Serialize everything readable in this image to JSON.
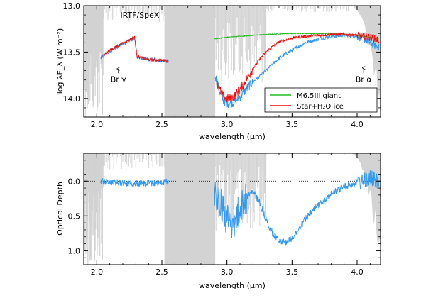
{
  "chart_data": [
    {
      "type": "line",
      "panel": "top",
      "xlabel": "wavelength (μm)",
      "ylabel": "log λF_λ (W m⁻²)",
      "xlim": [
        1.9,
        4.18
      ],
      "ylim": [
        -14.2,
        -13.0
      ],
      "x_ticks": [
        2.0,
        2.5,
        3.0,
        3.5,
        4.0
      ],
      "x_tick_labels": [
        "2.0",
        "2.5",
        "3.0",
        "3.5",
        "4.0"
      ],
      "y_ticks": [
        -14.0,
        -13.5,
        -13.0
      ],
      "y_tick_labels": [
        "−14.0",
        "−13.5",
        "−13.0"
      ],
      "annotations": [
        {
          "text": "IRTF/SpeX",
          "x": 2.18,
          "y": -13.13
        },
        {
          "text": "Br γ",
          "x": 2.166,
          "y": -13.82,
          "arrow_to_y": -13.68
        },
        {
          "text": "Br α",
          "x": 4.05,
          "y": -13.82,
          "arrow_to_y": -13.67
        }
      ],
      "legend": {
        "placement": "bottom-right",
        "entries": [
          {
            "label": "M6.5III giant",
            "color": "#22bb22"
          },
          {
            "label": "Star+H₂O ice",
            "color": "#ee1111"
          }
        ]
      },
      "series": [
        {
          "name": "observed",
          "color": "#3399ee",
          "x": [
            2.03,
            2.06,
            2.1,
            2.14,
            2.18,
            2.22,
            2.26,
            2.29,
            2.31,
            2.34,
            2.37,
            2.4,
            2.44,
            2.48,
            2.52,
            2.55,
            2.91,
            2.93,
            2.95,
            2.97,
            3.0,
            3.03,
            3.06,
            3.09,
            3.12,
            3.16,
            3.2,
            3.25,
            3.3,
            3.35,
            3.4,
            3.45,
            3.5,
            3.55,
            3.6,
            3.7,
            3.8,
            3.9,
            4.0,
            4.05,
            4.1,
            4.15,
            4.17
          ],
          "y": [
            -13.57,
            -13.53,
            -13.49,
            -13.46,
            -13.43,
            -13.4,
            -13.37,
            -13.35,
            -13.55,
            -13.56,
            -13.57,
            -13.58,
            -13.58,
            -13.59,
            -13.6,
            -13.6,
            -13.75,
            -13.85,
            -13.95,
            -14.02,
            -14.05,
            -14.05,
            -14.04,
            -14.0,
            -13.95,
            -13.88,
            -13.82,
            -13.76,
            -13.7,
            -13.63,
            -13.57,
            -13.52,
            -13.48,
            -13.44,
            -13.4,
            -13.36,
            -13.33,
            -13.32,
            -13.33,
            -13.36,
            -13.4,
            -13.44,
            -13.45
          ]
        },
        {
          "name": "M6.5III giant",
          "color": "#22bb22",
          "x": [
            2.9,
            3.0,
            3.1,
            3.2,
            3.3,
            3.4,
            3.5,
            3.6,
            3.7,
            3.8,
            3.9,
            4.0,
            4.1,
            4.17
          ],
          "y": [
            -13.36,
            -13.34,
            -13.33,
            -13.32,
            -13.31,
            -13.305,
            -13.3,
            -13.3,
            -13.3,
            -13.3,
            -13.31,
            -13.32,
            -13.34,
            -13.36
          ]
        },
        {
          "name": "Star+H₂O ice",
          "color": "#ee1111",
          "x": [
            2.03,
            2.06,
            2.1,
            2.14,
            2.18,
            2.22,
            2.26,
            2.29,
            2.31,
            2.34,
            2.37,
            2.4,
            2.44,
            2.48,
            2.52,
            2.55,
            2.92,
            2.95,
            2.97,
            3.0,
            3.03,
            3.06,
            3.09,
            3.12,
            3.15,
            3.2,
            3.25,
            3.3,
            3.35,
            3.4,
            3.5,
            3.6,
            3.7,
            3.8,
            3.9,
            4.0,
            4.1,
            4.17
          ],
          "y": [
            -13.56,
            -13.52,
            -13.48,
            -13.45,
            -13.42,
            -13.39,
            -13.36,
            -13.34,
            -13.55,
            -13.56,
            -13.57,
            -13.58,
            -13.58,
            -13.59,
            -13.59,
            -13.6,
            -13.82,
            -13.92,
            -13.97,
            -14.0,
            -14.0,
            -13.97,
            -13.92,
            -13.86,
            -13.79,
            -13.68,
            -13.58,
            -13.5,
            -13.44,
            -13.39,
            -13.35,
            -13.33,
            -13.32,
            -13.31,
            -13.31,
            -13.32,
            -13.34,
            -13.37
          ]
        }
      ]
    },
    {
      "type": "line",
      "panel": "bottom",
      "xlabel": "wavelength (μm)",
      "ylabel": "Optical Depth",
      "xlim": [
        1.9,
        4.18
      ],
      "ylim": [
        1.2,
        -0.4
      ],
      "x_ticks": [
        2.0,
        2.5,
        3.0,
        3.5,
        4.0
      ],
      "x_tick_labels": [
        "2.0",
        "2.5",
        "3.0",
        "3.5",
        "4.0"
      ],
      "y_ticks": [
        0.0,
        0.5,
        1.0
      ],
      "y_tick_labels": [
        "0.0",
        "0.5",
        "1.0"
      ],
      "reference_line": {
        "y": 0.0,
        "style": "dotted"
      },
      "series": [
        {
          "name": "optical depth",
          "color": "#3399ee",
          "x": [
            2.03,
            2.1,
            2.2,
            2.3,
            2.4,
            2.5,
            2.55,
            2.9,
            2.95,
            3.0,
            3.05,
            3.1,
            3.15,
            3.2,
            3.25,
            3.3,
            3.35,
            3.4,
            3.45,
            3.5,
            3.55,
            3.6,
            3.7,
            3.8,
            3.9,
            4.0,
            4.05,
            4.1,
            4.15,
            4.17
          ],
          "y": [
            0.0,
            0.01,
            0.02,
            0.03,
            0.03,
            0.02,
            0.0,
            0.1,
            0.3,
            0.55,
            0.6,
            0.4,
            0.22,
            0.15,
            0.3,
            0.55,
            0.75,
            0.85,
            0.88,
            0.82,
            0.7,
            0.55,
            0.35,
            0.18,
            0.08,
            0.02,
            0.0,
            -0.05,
            0.0,
            0.05
          ]
        }
      ]
    }
  ]
}
